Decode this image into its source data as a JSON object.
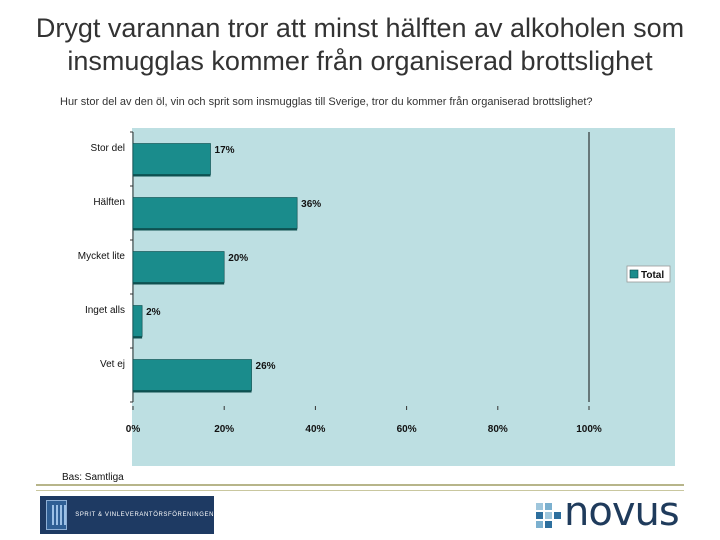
{
  "header": {
    "title_line1": "Drygt varannan tror att minst hälften av alkoholen som",
    "title_line2": "insmugglas kommer från organiserad brottslighet",
    "question": "Hur stor del av den öl, vin och sprit som insmugglas till Sverige, tror du kommer från organiserad brottslighet?"
  },
  "chart_data": {
    "type": "bar",
    "orientation": "horizontal",
    "title": "",
    "categories": [
      "Stor del",
      "Hälften",
      "Mycket lite",
      "Inget alls",
      "Vet ej"
    ],
    "series": [
      {
        "name": "Total",
        "values": [
          17,
          36,
          20,
          2,
          26
        ]
      }
    ],
    "value_labels": [
      "17%",
      "36%",
      "20%",
      "2%",
      "26%"
    ],
    "xlim": [
      0,
      100
    ],
    "xticks": [
      0,
      20,
      40,
      60,
      80,
      100
    ],
    "xtick_labels": [
      "0%",
      "20%",
      "40%",
      "60%",
      "80%",
      "100%"
    ],
    "legend": "right",
    "colors": {
      "bar": "#1a8c8c",
      "plot_bg": "#bddfe2",
      "grid": "#111111"
    }
  },
  "footer": {
    "base": "Bas: Samtliga",
    "sponsor": "SPRIT & VINLEVERANTÖRSFÖRENINGEN",
    "brand": "novus"
  }
}
